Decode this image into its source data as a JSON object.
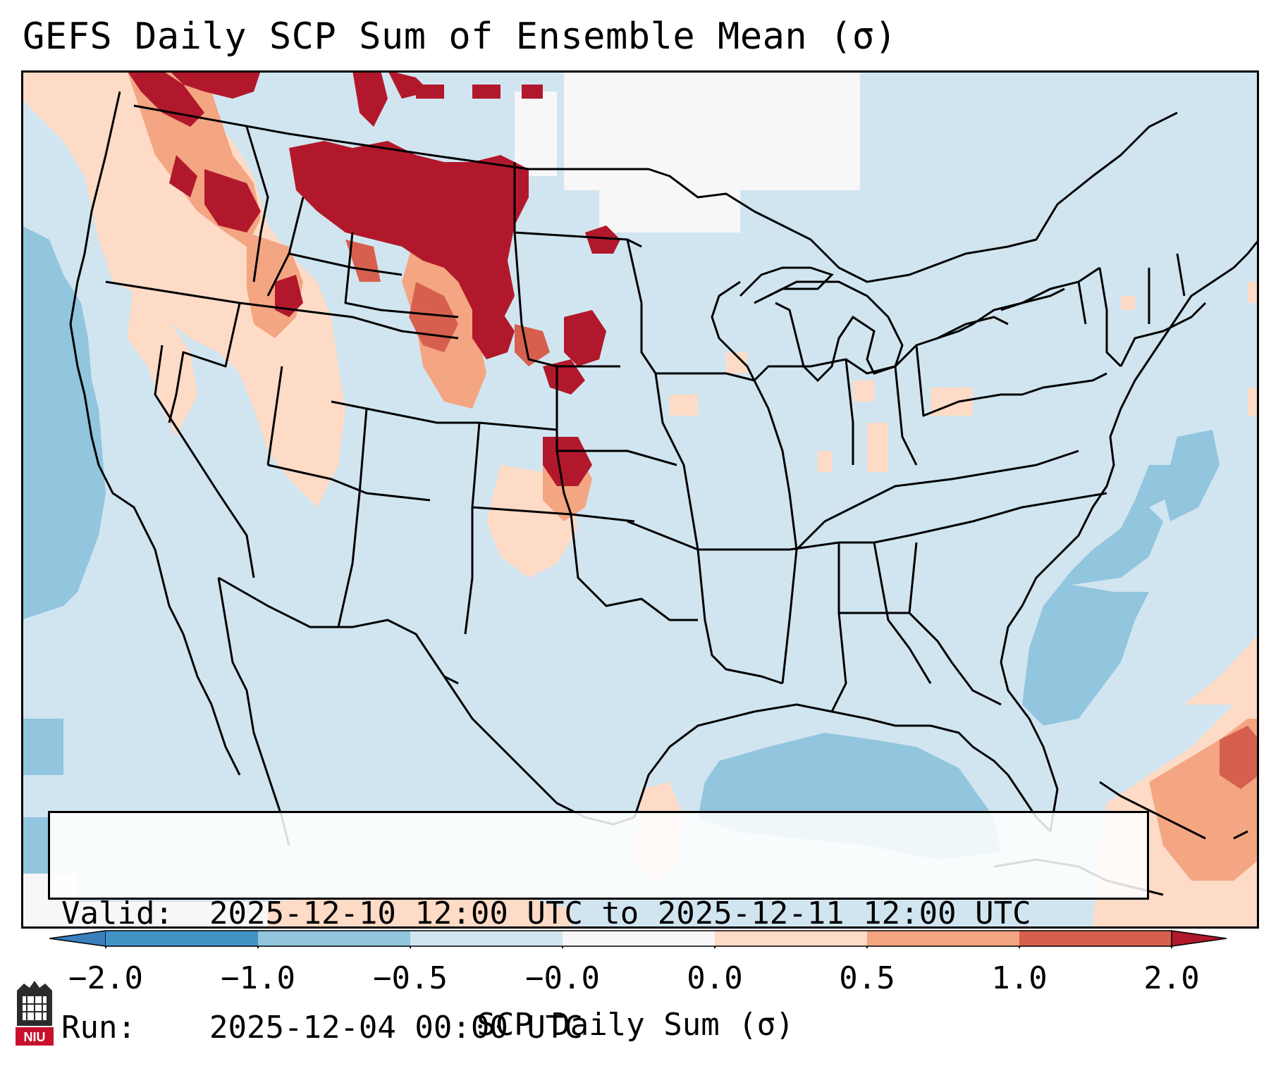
{
  "title": "GEFS Daily SCP Sum of Ensemble Mean (σ)",
  "info": {
    "valid_label": "Valid:",
    "valid_value": "2025-12-10 12:00 UTC to 2025-12-11 12:00 UTC",
    "run_label": "Run:",
    "run_value": "2025-12-04 00:00 UTC"
  },
  "colorbar": {
    "label": "SCP Daily Sum (σ)",
    "ticks": [
      "−2.0",
      "−1.0",
      "−0.5",
      "−0.0",
      "0.0",
      "0.5",
      "1.0",
      "2.0"
    ],
    "colors": {
      "under": "#3a7fbd",
      "bin_neg2_neg1": "#4292c6",
      "bin_neg1_neg05": "#92c5de",
      "bin_neg05_0": "#d1e5f0",
      "bin_0": "#f7f7f7",
      "bin_0_05": "#fddbc7",
      "bin_05_1": "#f4a582",
      "bin_1_2": "#d6604d",
      "over": "#b2182b"
    }
  },
  "logo_text": "NIU",
  "colors": {
    "ocean_base": "#d1e5f0",
    "strong_pos": "#b2182b",
    "mid_pos": "#d6604d",
    "light_pos": "#fddbc7",
    "neg_mid": "#92c5de",
    "white": "#f7f7f7"
  }
}
